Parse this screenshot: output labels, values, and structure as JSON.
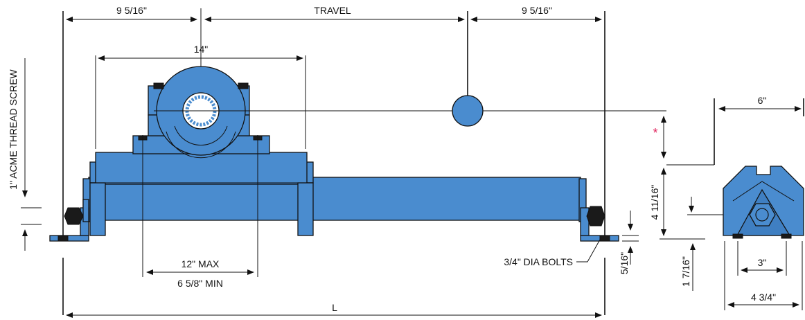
{
  "dimensions": {
    "left_end": "9 5/16\"",
    "travel": "TRAVEL",
    "right_end": "9 5/16\"",
    "block_length": "14\"",
    "bolt_max": "12\" MAX",
    "bolt_min": "6 5/8\" MIN",
    "overall_length": "L",
    "screw_label": "1\" ACME THREAD SCREW",
    "bolts_label": "3/4\" DIA BOLTS",
    "foot_thickness": "5/16\"",
    "asterisk": "*",
    "height": "4 11/16\"",
    "base_height": "1 7/16\"",
    "side_width": "6\"",
    "bolt_spacing": "3\"",
    "base_width": "4 3/4\""
  },
  "colors": {
    "body": "#4a8ccf",
    "asterisk": "#e0245e"
  }
}
